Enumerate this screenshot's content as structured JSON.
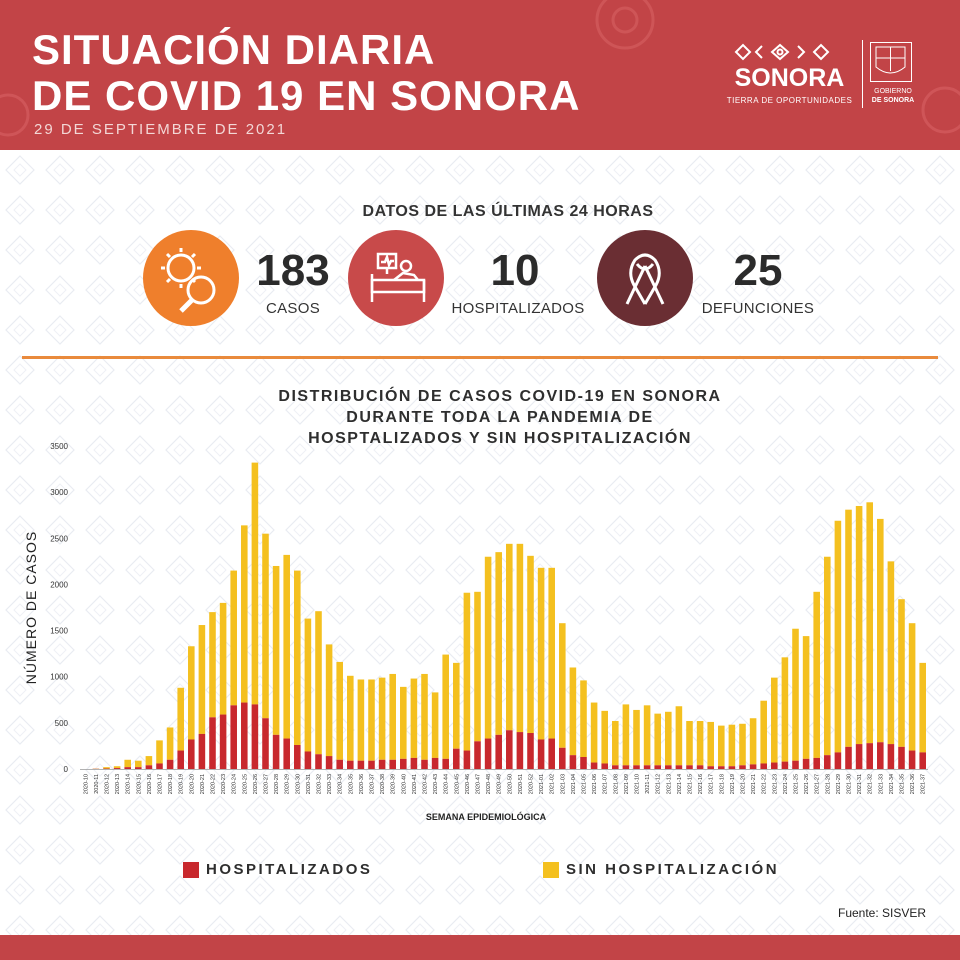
{
  "header": {
    "title_line1": "SITUACIÓN DIARIA",
    "title_line2": "DE COVID 19 EN SONORA",
    "date": "29 DE SEPTIEMBRE DE 2021",
    "logo_name": "SONORA",
    "logo_tagline": "TIERRA DE OPORTUNIDADES",
    "gov_line1": "GOBIERNO",
    "gov_line2": "DE SONORA"
  },
  "last24": {
    "heading": "DATOS DE LAS ÚLTIMAS 24 HORAS",
    "stats": [
      {
        "value": "183",
        "label": "CASOS",
        "icon": "virus-magnifier-icon",
        "color": "#ef7f2c"
      },
      {
        "value": "10",
        "label": "HOSPITALIZADOS",
        "icon": "hospital-bed-icon",
        "color": "#c84a4a"
      },
      {
        "value": "25",
        "label": "DEFUNCIONES",
        "icon": "ribbon-icon",
        "color": "#6a2e33"
      }
    ]
  },
  "chart_title": {
    "line1": "DISTRIBUCIÓN DE CASOS COVID-19 EN SONORA",
    "line2": "DURANTE TODA LA PANDEMIA DE",
    "line3": "HOSPTALIZADOS Y SIN HOSPITALIZACIÓN"
  },
  "chart_data": {
    "type": "bar",
    "stacked": true,
    "ylabel": "NÚMERO DE CASOS",
    "xlabel": "SEMANA EPIDEMIOLÓGICA",
    "ylim": [
      0,
      3500
    ],
    "yticks": [
      0,
      500,
      1000,
      1500,
      2000,
      2500,
      3000,
      3500
    ],
    "grid": false,
    "legend_position": "bottom",
    "categories": [
      "2020-10",
      "2020-11",
      "2020-12",
      "2020-13",
      "2020-14",
      "2020-15",
      "2020-16",
      "2020-17",
      "2020-18",
      "2020-19",
      "2020-20",
      "2020-21",
      "2020-22",
      "2020-23",
      "2020-24",
      "2020-25",
      "2020-26",
      "2020-27",
      "2020-28",
      "2020-29",
      "2020-30",
      "2020-31",
      "2020-32",
      "2020-33",
      "2020-34",
      "2020-35",
      "2020-36",
      "2020-37",
      "2020-38",
      "2020-39",
      "2020-40",
      "2020-41",
      "2020-42",
      "2020-43",
      "2020-44",
      "2020-45",
      "2020-46",
      "2020-47",
      "2020-48",
      "2020-49",
      "2020-50",
      "2020-51",
      "2020-52",
      "2021-01",
      "2021-02",
      "2021-03",
      "2021-04",
      "2021-05",
      "2021-06",
      "2021-07",
      "2021-08",
      "2021-09",
      "2021-10",
      "2021-11",
      "2021-12",
      "2021-13",
      "2021-14",
      "2021-15",
      "2021-16",
      "2021-17",
      "2021-18",
      "2021-19",
      "2021-20",
      "2021-21",
      "2021-22",
      "2021-23",
      "2021-24",
      "2021-25",
      "2021-26",
      "2021-27",
      "2021-28",
      "2021-29",
      "2021-30",
      "2021-31",
      "2021-32",
      "2021-33",
      "2021-34",
      "2021-35",
      "2021-36",
      "2021-37"
    ],
    "series": [
      {
        "name": "HOSPITALIZADOS",
        "color": "#c8282d",
        "values": [
          0,
          2,
          5,
          10,
          20,
          20,
          40,
          60,
          100,
          200,
          320,
          380,
          560,
          590,
          690,
          720,
          700,
          550,
          370,
          330,
          260,
          190,
          160,
          140,
          100,
          90,
          90,
          90,
          100,
          100,
          110,
          120,
          100,
          120,
          110,
          220,
          200,
          300,
          330,
          370,
          420,
          400,
          390,
          320,
          330,
          230,
          150,
          130,
          70,
          60,
          40,
          40,
          40,
          40,
          40,
          40,
          40,
          40,
          40,
          30,
          30,
          30,
          40,
          50,
          60,
          70,
          80,
          90,
          110,
          120,
          150,
          180,
          240,
          270,
          280,
          290,
          270,
          240,
          200,
          180
        ]
      },
      {
        "name": "SIN HOSPITALIZACIÓN",
        "color": "#f4c01f",
        "values": [
          0,
          3,
          15,
          20,
          80,
          70,
          100,
          250,
          350,
          680,
          1010,
          1180,
          1140,
          1210,
          1460,
          1920,
          2620,
          2000,
          1830,
          1990,
          1890,
          1440,
          1550,
          1210,
          1060,
          920,
          880,
          880,
          890,
          930,
          780,
          860,
          930,
          710,
          1130,
          930,
          1710,
          1620,
          1970,
          1980,
          2020,
          2040,
          1920,
          1860,
          1850,
          1350,
          950,
          830,
          650,
          570,
          480,
          660,
          600,
          650,
          560,
          580,
          640,
          480,
          480,
          480,
          440,
          450,
          450,
          500,
          680,
          920,
          1130,
          1430,
          1330,
          1800,
          2150,
          2510,
          2570,
          2580,
          2610,
          2420,
          1980,
          1600,
          1380,
          970
        ]
      }
    ]
  },
  "legend": {
    "hosp_label": "HOSPITALIZADOS",
    "sin_label": "SIN HOSPITALIZACIÓN"
  },
  "source": "Fuente: SISVER"
}
